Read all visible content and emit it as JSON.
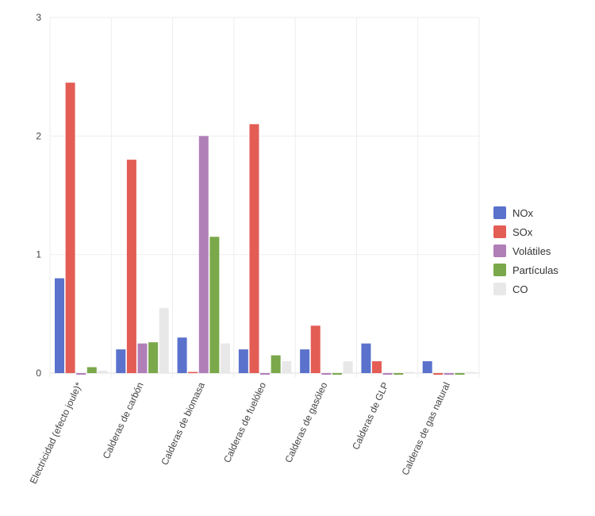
{
  "chart_data": {
    "type": "bar",
    "categories": [
      "Electricidad (efecto joule)*",
      "Calderas de carbón",
      "Calderas de biomasa",
      "Calderas de fuelóleo",
      "Calderas de gasóleo",
      "Calderas de GLP",
      "Calderas de gas natural"
    ],
    "series": [
      {
        "name": "NOx",
        "color": "#5a72cc",
        "values": [
          0.8,
          0.2,
          0.3,
          0.2,
          0.2,
          0.25,
          0.1
        ]
      },
      {
        "name": "SOx",
        "color": "#e35d55",
        "values": [
          2.45,
          1.8,
          0.01,
          2.1,
          0.4,
          0.1,
          0
        ]
      },
      {
        "name": "Volátiles",
        "color": "#b07fb8",
        "values": [
          0,
          0.25,
          2.0,
          0,
          0,
          0,
          0
        ]
      },
      {
        "name": "Partículas",
        "color": "#7aa84a",
        "values": [
          0.05,
          0.26,
          1.15,
          0.15,
          0,
          0,
          0
        ]
      },
      {
        "name": "CO",
        "color": "#e8e8e8",
        "values": [
          0.02,
          0.55,
          0.25,
          0.1,
          0.1,
          0.01,
          0.01
        ]
      }
    ],
    "yticks": [
      "0",
      "1",
      "2",
      "3"
    ],
    "ylim": [
      0,
      3
    ],
    "grid": true,
    "legend": "right"
  }
}
